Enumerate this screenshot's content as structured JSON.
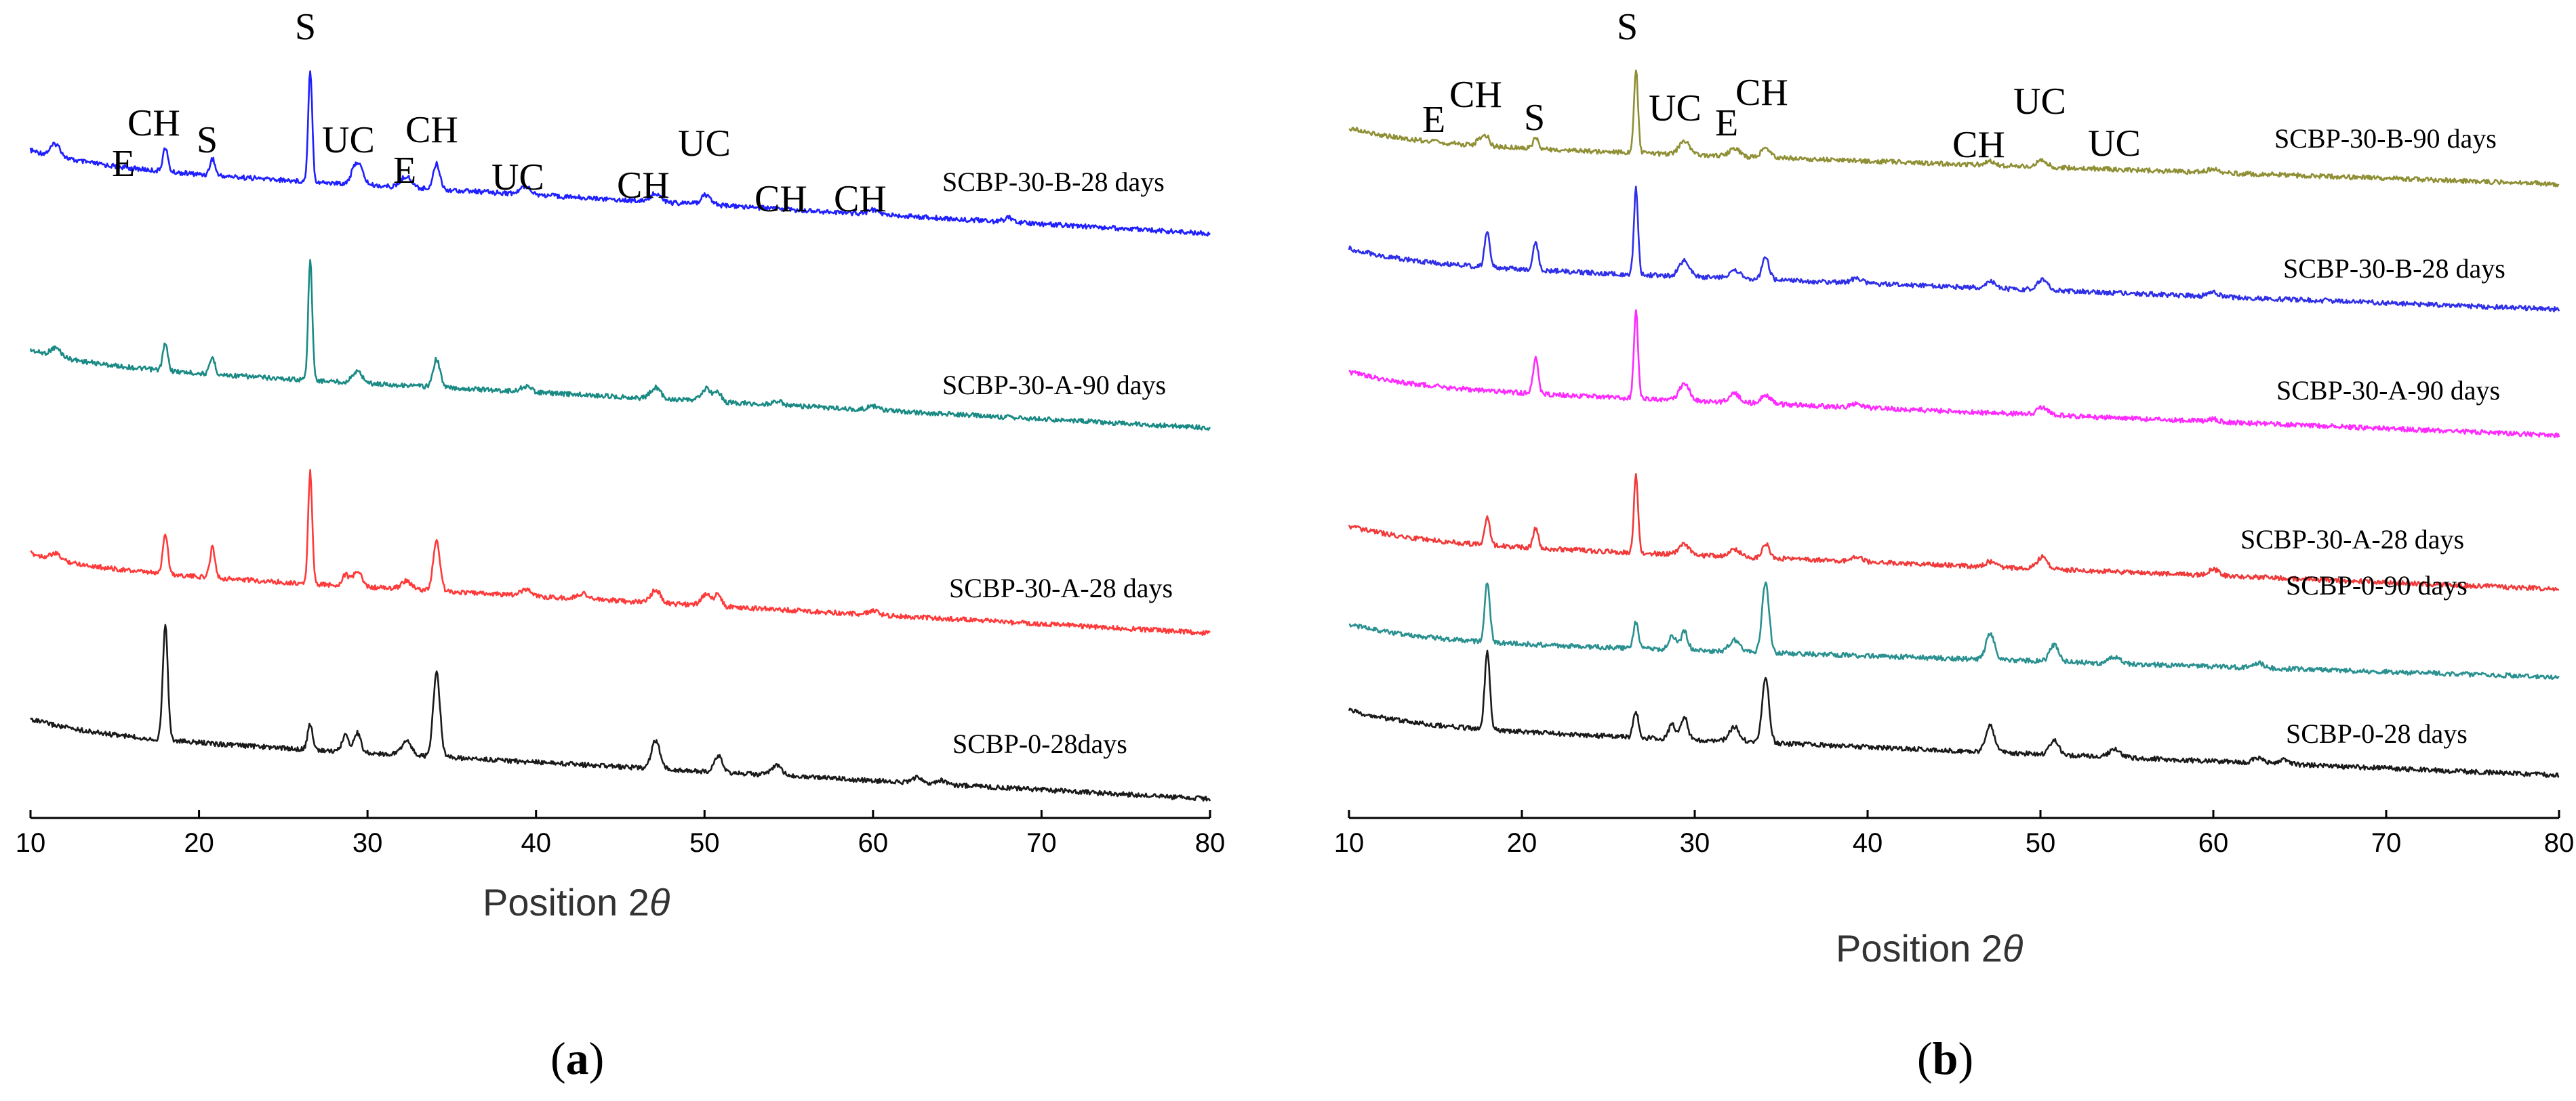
{
  "chart_data": [
    {
      "type": "line",
      "panel_label": "a",
      "xlabel": "Position 2",
      "xlabel_symbol": "θ",
      "xlim": [
        10,
        80
      ],
      "xticks": [
        10,
        20,
        30,
        40,
        50,
        60,
        70,
        80
      ],
      "ylabel": "",
      "series": [
        {
          "name": "SCBP-30-B-28 days",
          "color": "#1f1fff",
          "baseline_start": 0.86,
          "baseline_end": 0.04,
          "peaks": [
            [
              11.5,
              0.45,
              0.3
            ],
            [
              18.0,
              0.85,
              0.15
            ],
            [
              20.8,
              0.6,
              0.15
            ],
            [
              26.6,
              4.0,
              0.12
            ],
            [
              29.4,
              0.8,
              0.3
            ],
            [
              32.3,
              0.4,
              0.3
            ],
            [
              34.1,
              0.9,
              0.2
            ],
            [
              39.4,
              0.3,
              0.3
            ],
            [
              47.1,
              0.3,
              0.3
            ],
            [
              50.1,
              0.35,
              0.3
            ],
            [
              60.0,
              0.15,
              0.3
            ],
            [
              68.1,
              0.15,
              0.3
            ]
          ]
        },
        {
          "name": "SCBP-30-A-90 days",
          "color": "#1a8a85",
          "baseline_start": 0.86,
          "baseline_end": 0.04,
          "peaks": [
            [
              11.5,
              0.3,
              0.3
            ],
            [
              18.0,
              0.95,
              0.15
            ],
            [
              20.8,
              0.6,
              0.15
            ],
            [
              26.6,
              4.3,
              0.12
            ],
            [
              29.4,
              0.4,
              0.3
            ],
            [
              34.1,
              1.0,
              0.2
            ],
            [
              39.4,
              0.2,
              0.3
            ],
            [
              47.1,
              0.4,
              0.3
            ],
            [
              50.1,
              0.45,
              0.3
            ],
            [
              50.8,
              0.35,
              0.2
            ],
            [
              54.3,
              0.15,
              0.3
            ],
            [
              60.0,
              0.15,
              0.3
            ]
          ]
        },
        {
          "name": "SCBP-30-A-28 days",
          "color": "#ff3a3a",
          "baseline_start": 0.86,
          "baseline_end": 0.04,
          "peaks": [
            [
              11.5,
              0.2,
              0.3
            ],
            [
              18.0,
              1.45,
              0.15
            ],
            [
              20.8,
              1.1,
              0.15
            ],
            [
              26.6,
              4.0,
              0.12
            ],
            [
              28.7,
              0.4,
              0.2
            ],
            [
              29.4,
              0.55,
              0.25
            ],
            [
              32.3,
              0.3,
              0.3
            ],
            [
              34.1,
              1.8,
              0.2
            ],
            [
              39.4,
              0.25,
              0.3
            ],
            [
              42.8,
              0.2,
              0.3
            ],
            [
              47.1,
              0.45,
              0.3
            ],
            [
              50.1,
              0.4,
              0.3
            ],
            [
              50.8,
              0.4,
              0.2
            ],
            [
              60.0,
              0.15,
              0.3
            ]
          ]
        },
        {
          "name": "SCBP-0-28days",
          "color": "#1a1a1a",
          "baseline_start": 0.86,
          "baseline_end": 0.04,
          "peaks": [
            [
              18.0,
              4.1,
              0.15
            ],
            [
              26.6,
              0.9,
              0.15
            ],
            [
              28.7,
              0.6,
              0.2
            ],
            [
              29.4,
              0.7,
              0.2
            ],
            [
              32.3,
              0.5,
              0.3
            ],
            [
              34.1,
              3.0,
              0.2
            ],
            [
              47.1,
              1.0,
              0.25
            ],
            [
              50.8,
              0.6,
              0.25
            ],
            [
              54.3,
              0.35,
              0.3
            ],
            [
              62.6,
              0.2,
              0.3
            ],
            [
              64.1,
              0.15,
              0.3
            ]
          ]
        }
      ],
      "annotations": [
        {
          "text": "S",
          "x": 26.6
        },
        {
          "text": "E",
          "x": 16.0
        },
        {
          "text": "CH",
          "x": 18.2
        },
        {
          "text": "S",
          "x": 21.0
        },
        {
          "text": "UC",
          "x": 29.7
        },
        {
          "text": "E",
          "x": 32.6
        },
        {
          "text": "CH",
          "x": 34.6
        },
        {
          "text": "UC",
          "x": 40.0
        },
        {
          "text": "CH",
          "x": 47.2
        },
        {
          "text": "UC",
          "x": 50.3
        },
        {
          "text": "CH",
          "x": 55.2
        },
        {
          "text": "CH",
          "x": 60.0
        }
      ]
    },
    {
      "type": "line",
      "panel_label": "b",
      "xlabel": "Position 2",
      "xlabel_symbol": "θ",
      "xlim": [
        10,
        80
      ],
      "xticks": [
        10,
        20,
        30,
        40,
        50,
        60,
        70,
        80
      ],
      "ylabel": "",
      "series": [
        {
          "name": "SCBP-30-B-90 days",
          "color": "#8f8f35",
          "baseline_start": 1.0,
          "baseline_end": 0.0,
          "peaks": [
            [
              17.6,
              0.3,
              0.2
            ],
            [
              18.0,
              0.35,
              0.15
            ],
            [
              20.8,
              0.45,
              0.15
            ],
            [
              26.6,
              3.2,
              0.12
            ],
            [
              29.4,
              0.55,
              0.3
            ],
            [
              32.3,
              0.3,
              0.3
            ],
            [
              34.1,
              0.4,
              0.25
            ],
            [
              47.1,
              0.15,
              0.3
            ],
            [
              50.1,
              0.25,
              0.3
            ],
            [
              60.0,
              0.15,
              0.3
            ]
          ]
        },
        {
          "name": "SCBP-30-B-28 days",
          "color": "#2f2fe8",
          "baseline_start": 1.0,
          "baseline_end": 0.0,
          "peaks": [
            [
              18.0,
              1.4,
              0.15
            ],
            [
              20.8,
              1.1,
              0.15
            ],
            [
              26.6,
              3.3,
              0.12
            ],
            [
              29.4,
              0.6,
              0.3
            ],
            [
              32.3,
              0.35,
              0.3
            ],
            [
              34.1,
              0.85,
              0.2
            ],
            [
              39.4,
              0.2,
              0.3
            ],
            [
              47.1,
              0.25,
              0.3
            ],
            [
              50.1,
              0.4,
              0.3
            ],
            [
              60.0,
              0.15,
              0.3
            ]
          ]
        },
        {
          "name": "SCBP-30-A-90 days",
          "color": "#ff2aff",
          "baseline_start": 1.0,
          "baseline_end": 0.0,
          "peaks": [
            [
              20.8,
              1.35,
              0.15
            ],
            [
              26.6,
              3.4,
              0.12
            ],
            [
              29.4,
              0.65,
              0.3
            ],
            [
              32.3,
              0.35,
              0.3
            ],
            [
              34.1,
              0.3,
              0.3
            ],
            [
              39.4,
              0.15,
              0.3
            ],
            [
              50.1,
              0.3,
              0.3
            ],
            [
              60.0,
              0.1,
              0.3
            ]
          ]
        },
        {
          "name": "SCBP-30-A-28 days",
          "color": "#f03a3a",
          "baseline_start": 1.0,
          "baseline_end": 0.0,
          "peaks": [
            [
              18.0,
              1.1,
              0.15
            ],
            [
              20.8,
              0.75,
              0.15
            ],
            [
              26.6,
              3.0,
              0.12
            ],
            [
              29.4,
              0.4,
              0.3
            ],
            [
              32.3,
              0.3,
              0.3
            ],
            [
              34.1,
              0.55,
              0.2
            ],
            [
              39.4,
              0.2,
              0.3
            ],
            [
              47.1,
              0.2,
              0.3
            ],
            [
              50.1,
              0.45,
              0.3
            ],
            [
              60.0,
              0.25,
              0.3
            ]
          ]
        },
        {
          "name": "SCBP-0-90 days",
          "color": "#2a9090",
          "baseline_start": 1.0,
          "baseline_end": 0.0,
          "peaks": [
            [
              18.0,
              2.3,
              0.15
            ],
            [
              26.6,
              1.0,
              0.15
            ],
            [
              28.7,
              0.55,
              0.2
            ],
            [
              29.4,
              0.7,
              0.2
            ],
            [
              32.3,
              0.45,
              0.3
            ],
            [
              34.1,
              2.7,
              0.2
            ],
            [
              47.1,
              1.0,
              0.25
            ],
            [
              50.8,
              0.65,
              0.25
            ],
            [
              54.3,
              0.25,
              0.3
            ],
            [
              62.6,
              0.2,
              0.3
            ]
          ]
        },
        {
          "name": "SCBP-0-28 days",
          "color": "#1a1a1a",
          "baseline_start": 1.0,
          "baseline_end": 0.0,
          "peaks": [
            [
              18.0,
              3.0,
              0.15
            ],
            [
              26.6,
              1.0,
              0.15
            ],
            [
              28.7,
              0.55,
              0.2
            ],
            [
              29.4,
              0.85,
              0.2
            ],
            [
              32.3,
              0.55,
              0.3
            ],
            [
              34.1,
              2.5,
              0.2
            ],
            [
              47.1,
              1.0,
              0.25
            ],
            [
              50.8,
              0.55,
              0.25
            ],
            [
              54.3,
              0.3,
              0.3
            ],
            [
              62.6,
              0.2,
              0.3
            ],
            [
              64.1,
              0.2,
              0.3
            ]
          ]
        }
      ],
      "annotations": [
        {
          "text": "S",
          "x": 26.6
        },
        {
          "text": "E",
          "x": 15.5
        },
        {
          "text": "CH",
          "x": 18.0
        },
        {
          "text": "S",
          "x": 21.0
        },
        {
          "text": "UC",
          "x": 29.8
        },
        {
          "text": "E",
          "x": 32.0
        },
        {
          "text": "CH",
          "x": 34.3
        },
        {
          "text": "CH",
          "x": 46.0
        },
        {
          "text": "UC",
          "x": 49.4
        },
        {
          "text": "UC",
          "x": 54.5
        }
      ]
    }
  ]
}
